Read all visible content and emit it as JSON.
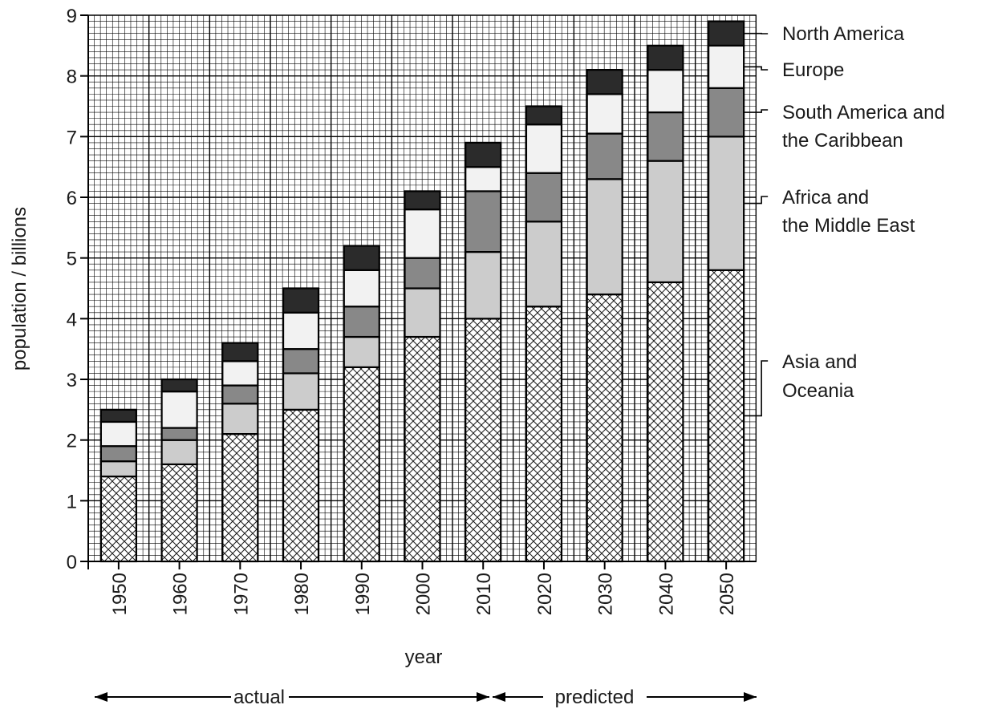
{
  "chart_data": {
    "type": "bar",
    "stacked": true,
    "title": "",
    "xlabel": "year",
    "ylabel": "population / billions",
    "ylim": [
      0,
      9
    ],
    "y_ticks": [
      "0",
      "1",
      "2",
      "3",
      "4",
      "5",
      "6",
      "7",
      "8",
      "9"
    ],
    "grid": "fine grid, 0.1 billion minor steps, 1 billion major steps",
    "categories": [
      "1950",
      "1960",
      "1970",
      "1980",
      "1990",
      "2000",
      "2010",
      "2020",
      "2030",
      "2040",
      "2050"
    ],
    "series": [
      {
        "name": "Asia and Oceania",
        "pattern": "crosshatch",
        "values": [
          1.4,
          1.6,
          2.1,
          2.5,
          3.2,
          3.7,
          4.0,
          4.2,
          4.4,
          4.6,
          4.8
        ]
      },
      {
        "name": "Africa and the Middle East",
        "color": "#cccccc",
        "values": [
          0.25,
          0.4,
          0.5,
          0.6,
          0.5,
          0.8,
          1.1,
          1.4,
          1.9,
          2.0,
          2.2
        ]
      },
      {
        "name": "South America and the Caribbean",
        "color": "#888888",
        "values": [
          0.25,
          0.2,
          0.3,
          0.4,
          0.5,
          0.5,
          1.0,
          0.8,
          0.75,
          0.8,
          0.8
        ]
      },
      {
        "name": "Europe",
        "color": "#f2f2f2",
        "values": [
          0.4,
          0.6,
          0.4,
          0.6,
          0.6,
          0.8,
          0.4,
          0.8,
          0.65,
          0.7,
          0.7
        ]
      },
      {
        "name": "North America",
        "color": "#2b2b2b",
        "values": [
          0.2,
          0.2,
          0.3,
          0.4,
          0.4,
          0.3,
          0.4,
          0.3,
          0.4,
          0.4,
          0.4
        ]
      }
    ],
    "legend_placement": "right",
    "legend_labels": [
      {
        "series": 4,
        "lines": [
          "North America"
        ]
      },
      {
        "series": 3,
        "lines": [
          "Europe"
        ]
      },
      {
        "series": 2,
        "lines": [
          "South America and",
          "the Caribbean"
        ]
      },
      {
        "series": 1,
        "lines": [
          "Africa and",
          "the Middle East"
        ]
      },
      {
        "series": 0,
        "lines": [
          "Asia and",
          "Oceania"
        ]
      }
    ],
    "periods": [
      {
        "label": "actual",
        "from": "1950",
        "to": "2010"
      },
      {
        "label": "predicted",
        "from": "2010",
        "to": "2050"
      }
    ]
  }
}
